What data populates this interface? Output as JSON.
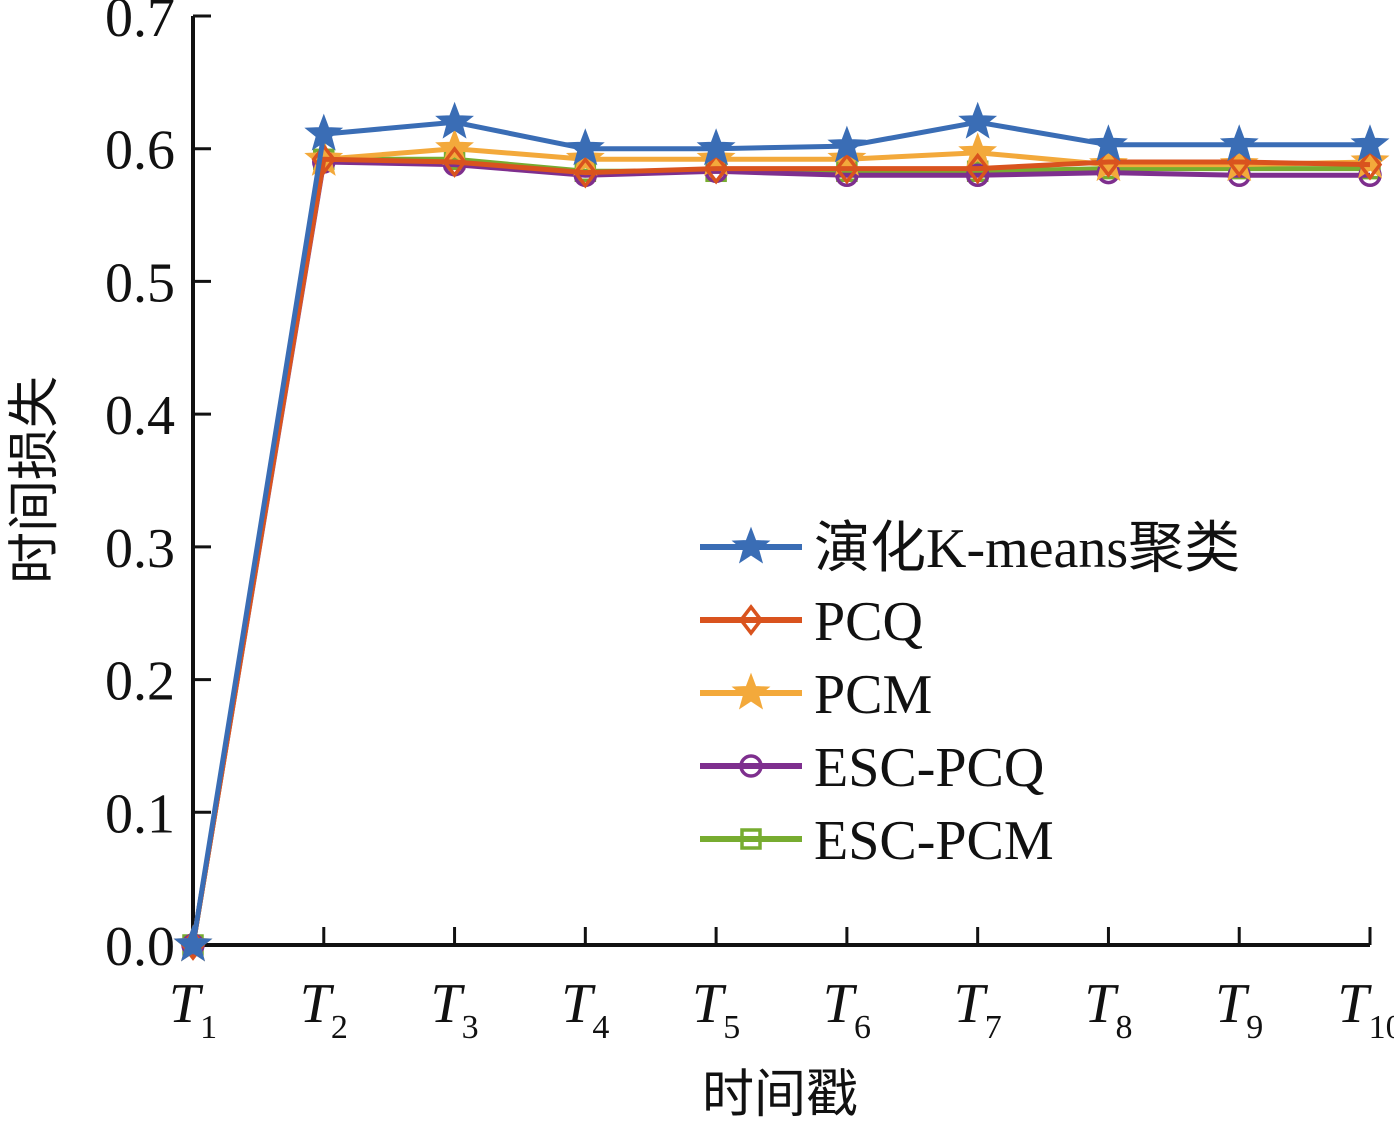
{
  "chart_data": {
    "type": "line",
    "title": "",
    "xlabel": "时间戳",
    "ylabel": "时间损失",
    "ylim": [
      0.0,
      0.7
    ],
    "y_ticks": [
      "0.0",
      "0.1",
      "0.2",
      "0.3",
      "0.4",
      "0.5",
      "0.6",
      "0.7"
    ],
    "categories": [
      {
        "main": "T",
        "sub": "1"
      },
      {
        "main": "T",
        "sub": "2"
      },
      {
        "main": "T",
        "sub": "3"
      },
      {
        "main": "T",
        "sub": "4"
      },
      {
        "main": "T",
        "sub": "5"
      },
      {
        "main": "T",
        "sub": "6"
      },
      {
        "main": "T",
        "sub": "7"
      },
      {
        "main": "T",
        "sub": "8"
      },
      {
        "main": "T",
        "sub": "9"
      },
      {
        "main": "T",
        "sub": "10"
      }
    ],
    "grid": false,
    "legend_position": "right-center",
    "series": [
      {
        "name": "演化K-means聚类",
        "color": "#3a6db5",
        "marker": "star",
        "values": [
          0.0,
          0.611,
          0.62,
          0.6,
          0.6,
          0.602,
          0.62,
          0.603,
          0.603,
          0.603
        ]
      },
      {
        "name": "PCQ",
        "color": "#d9531e",
        "marker": "diamond",
        "values": [
          0.0,
          0.592,
          0.59,
          0.582,
          0.585,
          0.585,
          0.585,
          0.59,
          0.59,
          0.588
        ]
      },
      {
        "name": "PCM",
        "color": "#f3a93b",
        "marker": "star",
        "values": [
          0.0,
          0.592,
          0.6,
          0.592,
          0.592,
          0.592,
          0.597,
          0.588,
          0.588,
          0.59
        ]
      },
      {
        "name": "ESC-PCQ",
        "color": "#7e2f8e",
        "marker": "circle",
        "values": [
          0.0,
          0.59,
          0.588,
          0.58,
          0.583,
          0.58,
          0.58,
          0.582,
          0.58,
          0.58
        ]
      },
      {
        "name": "ESC-PCM",
        "color": "#77ac30",
        "marker": "square",
        "values": [
          0.0,
          0.592,
          0.592,
          0.583,
          0.583,
          0.583,
          0.583,
          0.585,
          0.585,
          0.585
        ]
      }
    ]
  }
}
